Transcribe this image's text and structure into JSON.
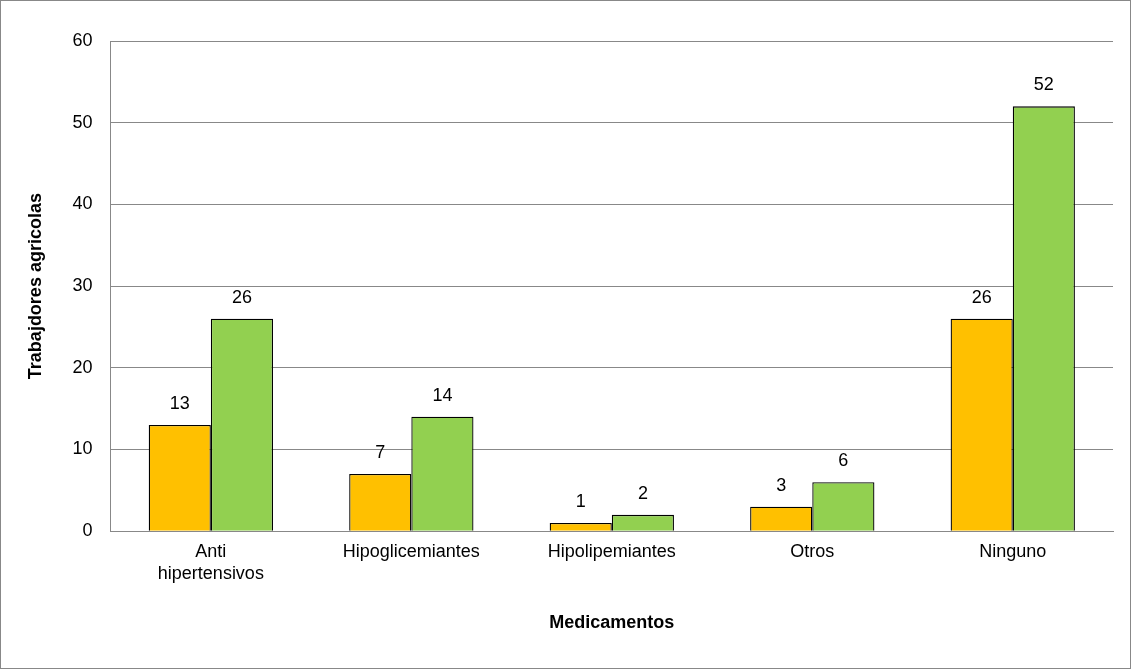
{
  "chart_data": {
    "type": "bar",
    "xlabel": "Medicamentos",
    "ylabel": "Trabajdores agricolas",
    "categories": [
      "Anti hipertensivos",
      "Hipoglicemiantes",
      "Hipolipemiantes",
      "Otros",
      "Ninguno"
    ],
    "series": [
      {
        "color": "#ffc000",
        "values": [
          13,
          7,
          1,
          3,
          26
        ]
      },
      {
        "color": "#92d050",
        "values": [
          26,
          14,
          2,
          6,
          52
        ]
      }
    ],
    "ylim": [
      0,
      60
    ],
    "yticks": [
      0,
      10,
      20,
      30,
      40,
      50,
      60
    ],
    "grid": "y",
    "data_labels": true,
    "legend": false
  }
}
